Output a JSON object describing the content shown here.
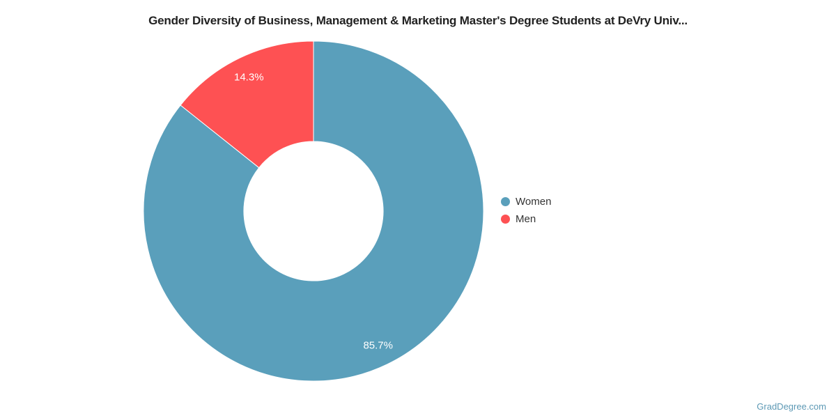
{
  "chart_data": {
    "type": "pie",
    "donut": true,
    "title": "Gender Diversity of Business, Management & Marketing Master's Degree Students at DeVry Univ...",
    "slices": [
      {
        "label": "Women",
        "value": 85.7,
        "display": "85.7%",
        "color": "#5a9fbb"
      },
      {
        "label": "Men",
        "value": 14.3,
        "display": "14.3%",
        "color": "#fe5153"
      }
    ],
    "start_angle_deg": 0,
    "direction": "clockwise",
    "inner_radius_ratio": 0.41,
    "separator_color": "#ffffff",
    "label_color": "#ffffff",
    "legend_position": "right"
  },
  "watermark": {
    "text": "GradDegree.com"
  }
}
